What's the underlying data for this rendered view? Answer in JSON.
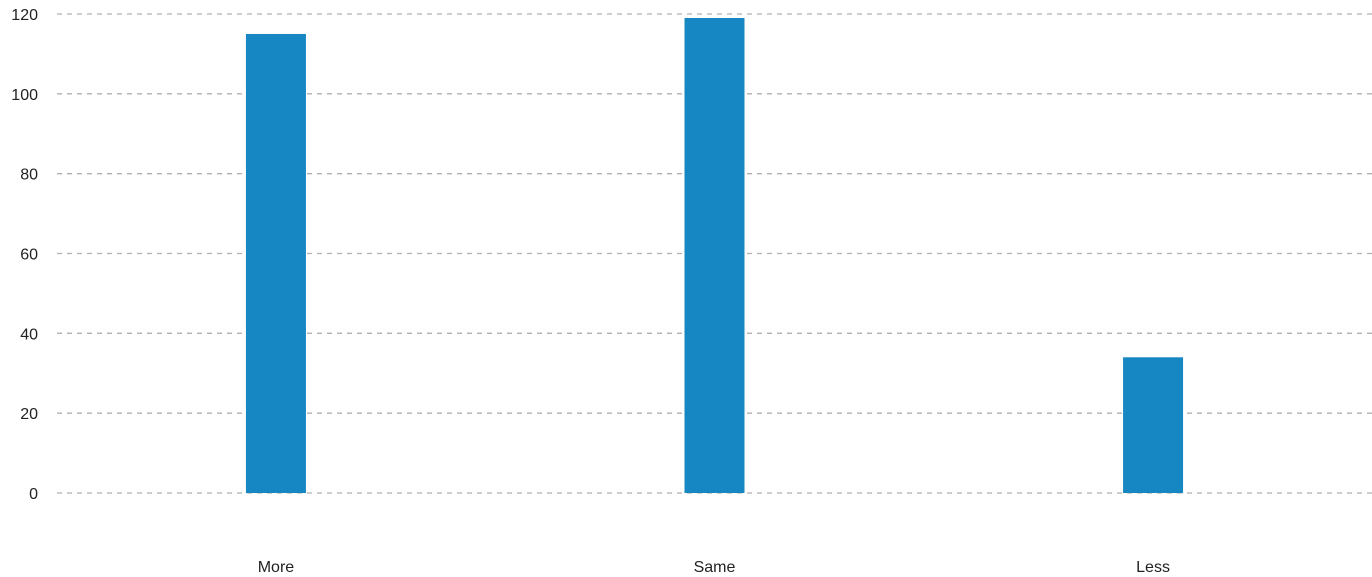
{
  "chart_data": {
    "type": "bar",
    "categories": [
      "More",
      "Same",
      "Less"
    ],
    "values": [
      115,
      119,
      34
    ],
    "title": "",
    "xlabel": "",
    "ylabel": "",
    "ylim": [
      0,
      120
    ],
    "yticks": [
      "0",
      "20",
      "40",
      "60",
      "80",
      "100",
      "120"
    ],
    "grid": true,
    "bar_color": "#1787c3",
    "grid_color": "#b0b0b0"
  }
}
